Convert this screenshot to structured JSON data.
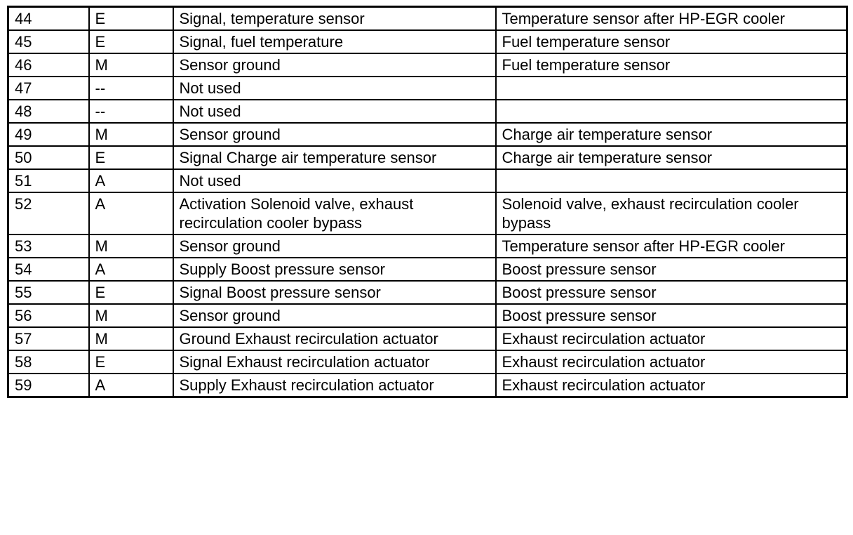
{
  "table": {
    "column_keys": [
      "pin",
      "type",
      "signal",
      "component"
    ],
    "rows": [
      {
        "pin": "44",
        "type": "E",
        "signal": "Signal, temperature sensor",
        "component": "Temperature sensor after HP-EGR cooler"
      },
      {
        "pin": "45",
        "type": "E",
        "signal": "Signal, fuel temperature",
        "component": "Fuel temperature sensor"
      },
      {
        "pin": "46",
        "type": "M",
        "signal": "Sensor ground",
        "component": "Fuel temperature sensor"
      },
      {
        "pin": "47",
        "type": "--",
        "signal": "Not used",
        "component": ""
      },
      {
        "pin": "48",
        "type": "--",
        "signal": "Not used",
        "component": ""
      },
      {
        "pin": "49",
        "type": "M",
        "signal": "Sensor ground",
        "component": "Charge air temperature sensor"
      },
      {
        "pin": "50",
        "type": "E",
        "signal": "Signal Charge air temperature sensor",
        "component": "Charge air temperature sensor"
      },
      {
        "pin": "51",
        "type": "A",
        "signal": "Not used",
        "component": ""
      },
      {
        "pin": "52",
        "type": "A",
        "signal": "Activation Solenoid valve, exhaust recirculation cooler bypass",
        "component": "Solenoid valve, exhaust recirculation cooler bypass"
      },
      {
        "pin": "53",
        "type": "M",
        "signal": "Sensor ground",
        "component": "Temperature sensor after HP-EGR cooler"
      },
      {
        "pin": "54",
        "type": "A",
        "signal": "Supply Boost pressure sensor",
        "component": "Boost pressure sensor"
      },
      {
        "pin": "55",
        "type": "E",
        "signal": "Signal Boost pressure sensor",
        "component": "Boost pressure sensor"
      },
      {
        "pin": "56",
        "type": "M",
        "signal": "Sensor ground",
        "component": "Boost pressure sensor"
      },
      {
        "pin": "57",
        "type": "M",
        "signal": "Ground Exhaust recirculation actuator",
        "component": "Exhaust recirculation actuator"
      },
      {
        "pin": "58",
        "type": "E",
        "signal": "Signal Exhaust recirculation actuator",
        "component": "Exhaust recirculation actuator"
      },
      {
        "pin": "59",
        "type": "A",
        "signal": "Supply Exhaust recirculation actuator",
        "component": "Exhaust recirculation actuator"
      }
    ]
  }
}
